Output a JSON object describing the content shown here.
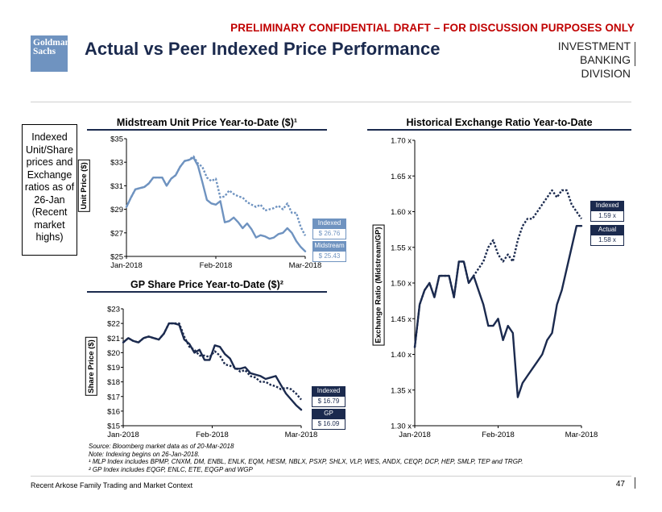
{
  "header": {
    "confidential": "PRELIMINARY CONFIDENTIAL DRAFT – FOR DISCUSSION PURPOSES ONLY",
    "logo_line1": "Goldman",
    "logo_line2": "Sachs",
    "title": "Actual vs Peer Indexed Price Performance",
    "division_line1": "INVESTMENT BANKING",
    "division_line2": "DIVISION"
  },
  "note_box": "Indexed Unit/Share prices and Exchange ratios as of 26-Jan (Recent market highs)",
  "colors": {
    "dark_navy": "#1b2a4e",
    "light_blue": "#6f93c0",
    "red": "#c00000"
  },
  "chart_data": [
    {
      "type": "line",
      "title": "Midstream Unit Price Year-to-Date ($)¹",
      "ylabel": "Unit Price ($)",
      "ylim": [
        25,
        35
      ],
      "yticks": [
        "$25",
        "$27",
        "$29",
        "$31",
        "$33",
        "$35"
      ],
      "xticks": [
        "Jan-2018",
        "Feb-2018",
        "Mar-2018"
      ],
      "grid": false,
      "series": [
        {
          "name": "Midstream",
          "style": "solid",
          "color": "#6f93c0",
          "end_label": "Midstream",
          "end_value": "$ 25.43",
          "values": [
            29.2,
            30.0,
            30.7,
            30.8,
            30.9,
            31.2,
            31.7,
            31.7,
            31.7,
            31.0,
            31.6,
            31.9,
            32.6,
            33.1,
            33.2,
            33.4,
            32.7,
            31.3,
            29.8,
            29.5,
            29.4,
            29.7,
            27.9,
            28.0,
            28.3,
            27.9,
            27.4,
            27.8,
            27.3,
            26.6,
            26.8,
            26.7,
            26.5,
            26.6,
            26.9,
            27.0,
            27.4,
            27.0,
            26.3,
            25.8,
            25.43
          ]
        },
        {
          "name": "Indexed",
          "style": "dotted",
          "color": "#6f93c0",
          "end_label": "Indexed",
          "end_value": "$ 26.76",
          "values": [
            29.2,
            30.0,
            30.7,
            30.8,
            30.9,
            31.2,
            31.7,
            31.7,
            31.7,
            31.0,
            31.6,
            31.9,
            32.6,
            33.1,
            33.2,
            33.5,
            32.9,
            32.6,
            31.7,
            31.4,
            31.6,
            30.0,
            30.1,
            30.6,
            30.3,
            30.1,
            30.0,
            29.6,
            29.4,
            29.2,
            29.4,
            28.9,
            29.0,
            29.1,
            29.3,
            29.0,
            29.5,
            28.7,
            28.7,
            27.5,
            26.76
          ]
        }
      ]
    },
    {
      "type": "line",
      "title": "GP Share Price Year-to-Date ($)²",
      "ylabel": "Share Price ($)",
      "ylim": [
        15,
        23
      ],
      "yticks": [
        "$15",
        "$16",
        "$17",
        "$18",
        "$19",
        "$20",
        "$21",
        "$22",
        "$23"
      ],
      "xticks": [
        "Jan-2018",
        "Feb-2018",
        "Mar-2018"
      ],
      "grid": false,
      "series": [
        {
          "name": "GP",
          "style": "solid",
          "color": "#1b2a4e",
          "end_label": "GP",
          "end_value": "$ 16.09",
          "values": [
            20.7,
            21.0,
            20.8,
            20.7,
            21.0,
            21.1,
            21.0,
            20.9,
            21.3,
            22.0,
            22.0,
            21.9,
            20.9,
            20.6,
            20.0,
            20.2,
            19.5,
            19.5,
            20.5,
            20.4,
            19.9,
            19.6,
            18.9,
            18.9,
            19.0,
            18.6,
            18.5,
            18.4,
            18.2,
            18.3,
            18.4,
            17.8,
            17.2,
            16.8,
            16.4,
            16.09
          ]
        },
        {
          "name": "Indexed",
          "style": "dotted",
          "color": "#1b2a4e",
          "end_label": "Indexed",
          "end_value": "$ 16.79",
          "values": [
            20.7,
            21.0,
            20.8,
            20.7,
            21.0,
            21.1,
            21.0,
            20.9,
            21.3,
            22.0,
            22.0,
            22.0,
            21.1,
            20.4,
            20.2,
            19.8,
            19.8,
            19.7,
            20.1,
            19.8,
            19.2,
            19.1,
            19.0,
            18.7,
            18.8,
            18.4,
            18.3,
            18.0,
            18.0,
            17.8,
            17.7,
            17.5,
            17.6,
            17.5,
            17.2,
            16.79
          ]
        }
      ]
    },
    {
      "type": "line",
      "title": "Historical Exchange Ratio Year-to-Date",
      "ylabel": "Exchange Ratio (Midstream/GP)",
      "ylim": [
        1.3,
        1.7
      ],
      "yticks": [
        "1.30 x",
        "1.35 x",
        "1.40 x",
        "1.45 x",
        "1.50 x",
        "1.55 x",
        "1.60 x",
        "1.65 x",
        "1.70 x"
      ],
      "xticks": [
        "Jan-2018",
        "Feb-2018",
        "Mar-2018"
      ],
      "grid": false,
      "series": [
        {
          "name": "Actual",
          "style": "solid",
          "color": "#1b2a4e",
          "end_label": "Actual",
          "end_value": "1.58 x",
          "values": [
            1.41,
            1.47,
            1.49,
            1.5,
            1.48,
            1.51,
            1.51,
            1.51,
            1.48,
            1.53,
            1.53,
            1.5,
            1.51,
            1.49,
            1.47,
            1.44,
            1.44,
            1.45,
            1.42,
            1.44,
            1.43,
            1.34,
            1.36,
            1.37,
            1.38,
            1.39,
            1.4,
            1.42,
            1.43,
            1.47,
            1.49,
            1.52,
            1.55,
            1.58,
            1.58
          ]
        },
        {
          "name": "Indexed",
          "style": "dotted",
          "color": "#1b2a4e",
          "end_label": "Indexed",
          "end_value": "1.59 x",
          "values": [
            1.41,
            1.47,
            1.49,
            1.5,
            1.48,
            1.51,
            1.51,
            1.51,
            1.48,
            1.53,
            1.53,
            1.5,
            1.51,
            1.52,
            1.53,
            1.55,
            1.56,
            1.54,
            1.53,
            1.54,
            1.53,
            1.56,
            1.58,
            1.59,
            1.59,
            1.6,
            1.61,
            1.62,
            1.63,
            1.62,
            1.63,
            1.63,
            1.61,
            1.6,
            1.59
          ]
        }
      ]
    }
  ],
  "footnotes": {
    "source": "Source: Bloomberg market data as of 20-Mar-2018",
    "note": "Note: Indexing begins on 26-Jan-2018.",
    "fn1": "¹ MLP Index includes BPMP, CNXM, DM, ENBL, ENLK, EQM, HESM, NBLX, PSXP, SHLX, VLP, WES, ANDX, CEQP, DCP, HEP, SMLP, TEP and TRGP.",
    "fn2": "² GP Index includes EQGP, ENLC, ETE, EQGP and WGP"
  },
  "footer": {
    "left": "Recent Arkose Family Trading and Market Context",
    "page": "47"
  }
}
